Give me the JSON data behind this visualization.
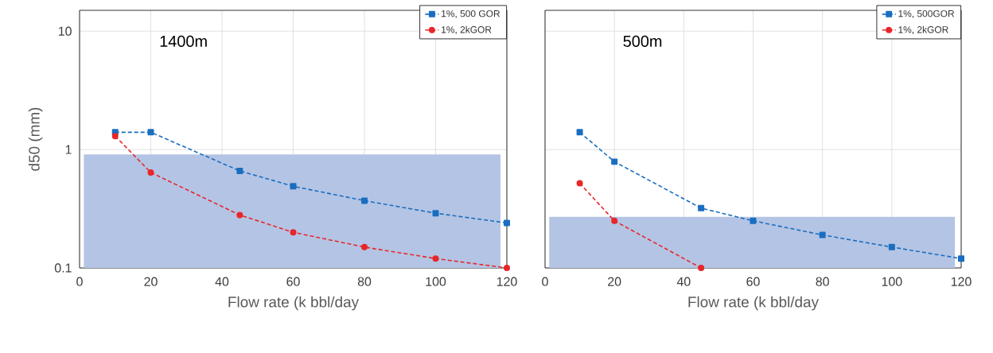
{
  "chart_data": [
    {
      "type": "line",
      "xlabel": "Flow rate (k bbl/day",
      "ylabel": "d50 (mm)",
      "annotations": [
        "1400m"
      ],
      "x": [
        10,
        20,
        45,
        60,
        80,
        100,
        120
      ],
      "log": "y",
      "xlim": [
        0,
        120
      ],
      "ylim": [
        0.1,
        15
      ],
      "xticks": [
        0,
        20,
        40,
        60,
        80,
        100,
        120
      ],
      "yticks": [
        0.1,
        1,
        10
      ],
      "grid": true,
      "legend": "top right",
      "line_style": "dashed",
      "bands": [
        {
          "axis": "y",
          "from": 0.1,
          "to": 0.91,
          "color": "#b4c4e4"
        }
      ],
      "series": [
        {
          "name": "1%, 500 GOR",
          "color": "#1a6ec0",
          "marker": "square",
          "values": [
            1.4,
            1.4,
            0.66,
            0.49,
            0.37,
            0.29,
            0.24
          ]
        },
        {
          "name": "1%, 2kGOR",
          "color": "#e8262a",
          "marker": "circle",
          "values": [
            1.3,
            0.64,
            0.28,
            0.2,
            0.15,
            0.12,
            0.1
          ]
        }
      ]
    },
    {
      "type": "line",
      "xlabel": "Flow rate (k bbl/day",
      "annotations": [
        "500m"
      ],
      "x": [
        10,
        20,
        45,
        60,
        80,
        100,
        120
      ],
      "log": "y",
      "xlim": [
        0,
        120
      ],
      "ylim": [
        0.1,
        15
      ],
      "xticks": [
        0,
        20,
        40,
        60,
        80,
        100,
        120
      ],
      "yticks": [
        0.1,
        1,
        10
      ],
      "tick_labels": "x",
      "grid": true,
      "legend": "top right",
      "line_style": "dashed",
      "bands": [
        {
          "axis": "y",
          "from": 0.1,
          "to": 0.27,
          "color": "#b4c4e4"
        }
      ],
      "series": [
        {
          "name": "1%, 500GOR",
          "color": "#1a6ec0",
          "marker": "square",
          "values": [
            1.4,
            0.79,
            0.32,
            0.25,
            0.19,
            0.15,
            0.12
          ]
        },
        {
          "name": "1%, 2kGOR",
          "color": "#e8262a",
          "marker": "circle",
          "x": [
            10,
            20,
            45
          ],
          "values": [
            0.52,
            0.25,
            0.1
          ]
        }
      ]
    }
  ]
}
